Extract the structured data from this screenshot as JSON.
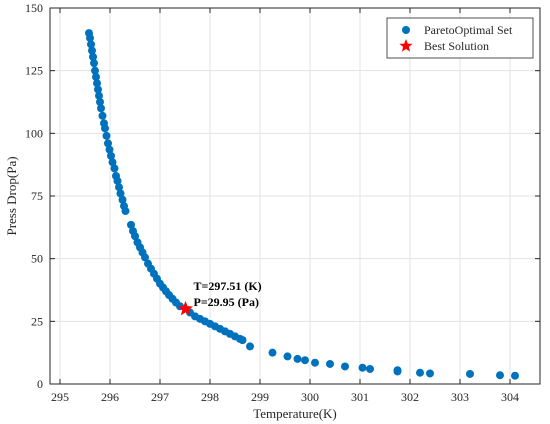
{
  "chart_data": {
    "type": "scatter",
    "title": "",
    "xlabel": "Temperature(K)",
    "ylabel": "Press Drop(Pa)",
    "xlim": [
      294.8,
      304.6
    ],
    "ylim": [
      0,
      150
    ],
    "xticks": [
      295,
      296,
      297,
      298,
      299,
      300,
      301,
      302,
      303,
      304
    ],
    "yticks": [
      0,
      25,
      50,
      75,
      100,
      125,
      150
    ],
    "grid": true,
    "legend_position": "top-right",
    "series": [
      {
        "name": "ParetoOptimal Set",
        "marker": "circle",
        "color": "#0072BD",
        "points": [
          [
            295.58,
            140.0
          ],
          [
            295.6,
            138.0
          ],
          [
            295.62,
            135.5
          ],
          [
            295.64,
            133.0
          ],
          [
            295.66,
            130.5
          ],
          [
            295.68,
            128.0
          ],
          [
            295.7,
            125.0
          ],
          [
            295.72,
            122.5
          ],
          [
            295.74,
            120.0
          ],
          [
            295.76,
            117.5
          ],
          [
            295.78,
            115.0
          ],
          [
            295.8,
            112.5
          ],
          [
            295.82,
            110.0
          ],
          [
            295.85,
            107.0
          ],
          [
            295.88,
            104.0
          ],
          [
            295.9,
            102.0
          ],
          [
            295.93,
            99.0
          ],
          [
            295.96,
            96.0
          ],
          [
            295.99,
            93.5
          ],
          [
            296.02,
            91.0
          ],
          [
            296.05,
            88.5
          ],
          [
            296.09,
            86.0
          ],
          [
            296.12,
            83.0
          ],
          [
            296.15,
            81.0
          ],
          [
            296.18,
            78.5
          ],
          [
            296.21,
            76.0
          ],
          [
            296.25,
            73.5
          ],
          [
            296.28,
            71.0
          ],
          [
            296.31,
            69.0
          ],
          [
            296.42,
            63.5
          ],
          [
            296.46,
            61.0
          ],
          [
            296.5,
            59.0
          ],
          [
            296.55,
            56.5
          ],
          [
            296.6,
            54.5
          ],
          [
            296.65,
            52.5
          ],
          [
            296.7,
            50.5
          ],
          [
            296.76,
            48.0
          ],
          [
            296.82,
            46.0
          ],
          [
            296.88,
            44.0
          ],
          [
            296.94,
            42.0
          ],
          [
            297.0,
            40.0
          ],
          [
            297.06,
            38.5
          ],
          [
            297.12,
            37.0
          ],
          [
            297.18,
            35.5
          ],
          [
            297.25,
            34.0
          ],
          [
            297.32,
            32.5
          ],
          [
            297.4,
            31.0
          ],
          [
            297.6,
            28.5
          ],
          [
            297.7,
            27.0
          ],
          [
            297.8,
            26.0
          ],
          [
            297.9,
            25.0
          ],
          [
            298.0,
            24.0
          ],
          [
            298.1,
            23.0
          ],
          [
            298.2,
            22.0
          ],
          [
            298.3,
            21.0
          ],
          [
            298.4,
            20.0
          ],
          [
            298.5,
            19.0
          ],
          [
            298.6,
            18.0
          ],
          [
            298.65,
            17.5
          ],
          [
            298.8,
            15.0
          ],
          [
            299.25,
            12.5
          ],
          [
            299.55,
            11.0
          ],
          [
            299.75,
            10.0
          ],
          [
            299.9,
            9.5
          ],
          [
            300.1,
            8.5
          ],
          [
            300.4,
            8.0
          ],
          [
            300.7,
            7.0
          ],
          [
            301.05,
            6.5
          ],
          [
            301.2,
            6.0
          ],
          [
            301.75,
            5.5
          ],
          [
            301.75,
            5.0
          ],
          [
            302.2,
            4.5
          ],
          [
            302.4,
            4.2
          ],
          [
            303.2,
            4.0
          ],
          [
            303.8,
            3.5
          ],
          [
            304.1,
            3.3
          ]
        ]
      },
      {
        "name": "Best Solution",
        "marker": "star",
        "color": "#FF0000",
        "points": [
          [
            297.51,
            29.95
          ]
        ]
      }
    ],
    "annotation": {
      "line1": "T=297.51 (K)",
      "line2": "P=29.95 (Pa)",
      "x": 297.51,
      "y": 29.95
    }
  }
}
